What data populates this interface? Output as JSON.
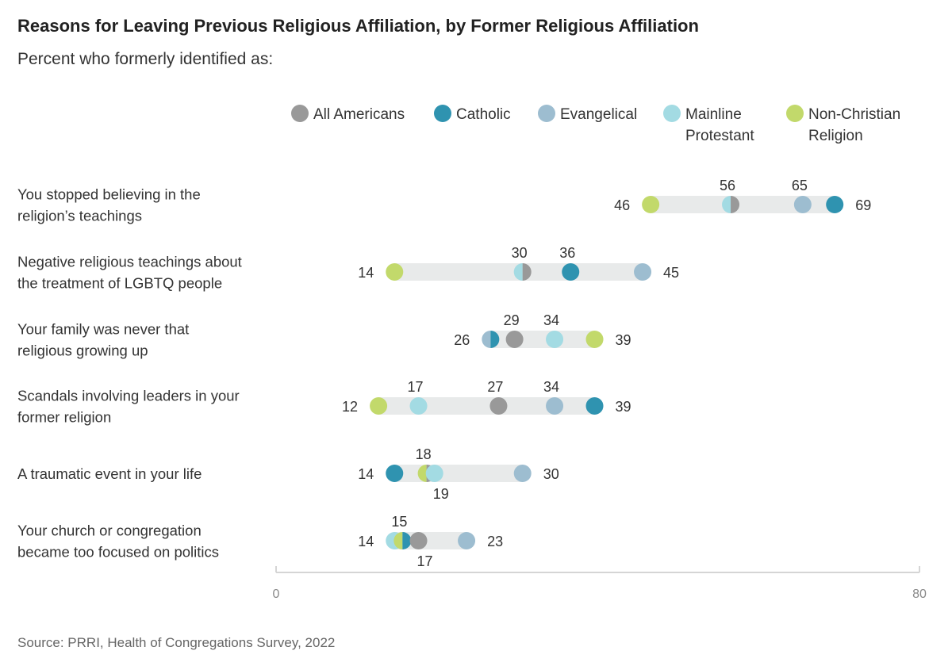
{
  "title": "Reasons for Leaving Previous Religious Affiliation, by Former Religious Affiliation",
  "subtitle": "Percent who formerly identified as:",
  "source": "Source: PRRI, Health of Congregations Survey, 2022",
  "chart_data": {
    "type": "dot",
    "xlim": [
      0,
      80
    ],
    "x_ticks": [
      "0",
      "80"
    ],
    "legend_position": "top",
    "grid": false,
    "series": [
      {
        "key": "all",
        "name": "All Americans",
        "name_lines": [
          "All Americans"
        ],
        "color": "#999999"
      },
      {
        "key": "catholic",
        "name": "Catholic",
        "name_lines": [
          "Catholic"
        ],
        "color": "#2f93b0"
      },
      {
        "key": "evangelical",
        "name": "Evangelical",
        "name_lines": [
          "Evangelical"
        ],
        "color": "#9dbdd0"
      },
      {
        "key": "mainline",
        "name": "Mainline Protestant",
        "name_lines": [
          "Mainline",
          "Protestant"
        ],
        "color": "#a3dbe3"
      },
      {
        "key": "nonchristian",
        "name": "Non-Christian Religion",
        "name_lines": [
          "Non-Christian",
          "Religion"
        ],
        "color": "#c2d96b"
      }
    ],
    "categories": [
      {
        "label_lines": [
          "You stopped believing in the",
          "religion’s teachings"
        ],
        "values": {
          "all": 56,
          "catholic": 69,
          "evangelical": 65,
          "mainline": 56,
          "nonchristian": 46
        },
        "value_labels": [
          {
            "text": "46",
            "value": 46,
            "pos": "left"
          },
          {
            "text": "56",
            "value": 56,
            "pos": "above"
          },
          {
            "text": "65",
            "value": 65,
            "pos": "above"
          },
          {
            "text": "69",
            "value": 69,
            "pos": "right"
          }
        ]
      },
      {
        "label_lines": [
          "Negative religious teachings about",
          "the treatment of LGBTQ people"
        ],
        "values": {
          "all": 30,
          "catholic": 36,
          "evangelical": 45,
          "mainline": 30,
          "nonchristian": 14
        },
        "value_labels": [
          {
            "text": "14",
            "value": 14,
            "pos": "left"
          },
          {
            "text": "30",
            "value": 30,
            "pos": "above"
          },
          {
            "text": "36",
            "value": 36,
            "pos": "above"
          },
          {
            "text": "45",
            "value": 45,
            "pos": "right"
          }
        ]
      },
      {
        "label_lines": [
          "Your family was never that",
          "religious growing up"
        ],
        "values": {
          "all": 29,
          "catholic": 26,
          "evangelical": 26,
          "mainline": 34,
          "nonchristian": 39
        },
        "value_labels": [
          {
            "text": "26",
            "value": 26,
            "pos": "left"
          },
          {
            "text": "29",
            "value": 29,
            "pos": "above"
          },
          {
            "text": "34",
            "value": 34,
            "pos": "above"
          },
          {
            "text": "39",
            "value": 39,
            "pos": "right"
          }
        ]
      },
      {
        "label_lines": [
          "Scandals involving leaders in your",
          "former religion"
        ],
        "values": {
          "all": 27,
          "catholic": 39,
          "evangelical": 34,
          "mainline": 17,
          "nonchristian": 12
        },
        "value_labels": [
          {
            "text": "12",
            "value": 12,
            "pos": "left"
          },
          {
            "text": "17",
            "value": 17,
            "pos": "above"
          },
          {
            "text": "27",
            "value": 27,
            "pos": "above"
          },
          {
            "text": "34",
            "value": 34,
            "pos": "above"
          },
          {
            "text": "39",
            "value": 39,
            "pos": "right"
          }
        ]
      },
      {
        "label_lines": [
          "A traumatic event in your life"
        ],
        "values": {
          "all": 18,
          "catholic": 14,
          "evangelical": 30,
          "mainline": 19,
          "nonchristian": 18
        },
        "value_labels": [
          {
            "text": "14",
            "value": 14,
            "pos": "left"
          },
          {
            "text": "18",
            "value": 18,
            "pos": "above"
          },
          {
            "text": "19",
            "value": 19,
            "pos": "below"
          },
          {
            "text": "30",
            "value": 30,
            "pos": "right"
          }
        ]
      },
      {
        "label_lines": [
          "Your church or congregation",
          "became too focused on politics"
        ],
        "values": {
          "all": 17,
          "catholic": 15,
          "evangelical": 23,
          "mainline": 14,
          "nonchristian": 15
        },
        "value_labels": [
          {
            "text": "14",
            "value": 14,
            "pos": "left"
          },
          {
            "text": "15",
            "value": 15,
            "pos": "above"
          },
          {
            "text": "17",
            "value": 17,
            "pos": "below"
          },
          {
            "text": "23",
            "value": 23,
            "pos": "right"
          }
        ]
      }
    ]
  }
}
